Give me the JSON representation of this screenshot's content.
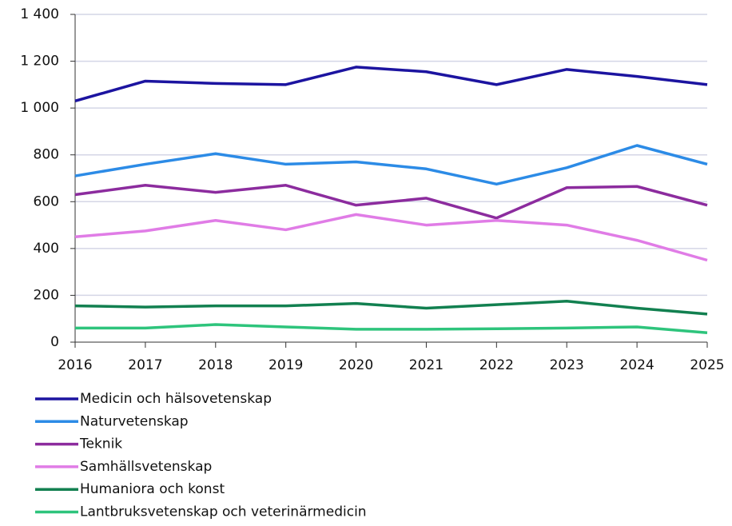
{
  "chart_data": {
    "type": "line",
    "x": [
      2016,
      2017,
      2018,
      2019,
      2020,
      2021,
      2022,
      2023,
      2024,
      2025
    ],
    "xlim": [
      2016,
      2025
    ],
    "xticks": [
      2016,
      2017,
      2018,
      2019,
      2020,
      2021,
      2022,
      2023,
      2024,
      2025
    ],
    "ylim": [
      0,
      1400
    ],
    "yticks": [
      0,
      200,
      400,
      600,
      800,
      {
        "value": 1000,
        "label": "1 000"
      },
      {
        "value": 1200,
        "label": "1 200"
      },
      {
        "value": 1400,
        "label": "1 400"
      }
    ],
    "grid": true,
    "legend": "bottom",
    "series": [
      {
        "name": "Medicin och hälsovetenskap",
        "color": "#1c14a0",
        "values": [
          1030,
          1115,
          1105,
          1100,
          1175,
          1155,
          1100,
          1165,
          1135,
          1100
        ]
      },
      {
        "name": "Naturvetenskap",
        "color": "#2c8be6",
        "values": [
          710,
          760,
          805,
          760,
          770,
          740,
          675,
          745,
          840,
          760
        ]
      },
      {
        "name": "Teknik",
        "color": "#8c2c9e",
        "values": [
          630,
          670,
          640,
          670,
          585,
          615,
          530,
          660,
          665,
          585
        ]
      },
      {
        "name": "Samhällsvetenskap",
        "color": "#e07ce6",
        "values": [
          450,
          475,
          520,
          480,
          545,
          500,
          520,
          500,
          435,
          350
        ]
      },
      {
        "name": "Humaniora och konst",
        "color": "#128050",
        "values": [
          155,
          150,
          155,
          155,
          165,
          145,
          160,
          175,
          145,
          120
        ]
      },
      {
        "name": "Lantbruksvetenskap och veterinärmedicin",
        "color": "#2ec47c",
        "values": [
          60,
          60,
          75,
          65,
          55,
          55,
          57,
          60,
          65,
          40
        ]
      }
    ]
  }
}
